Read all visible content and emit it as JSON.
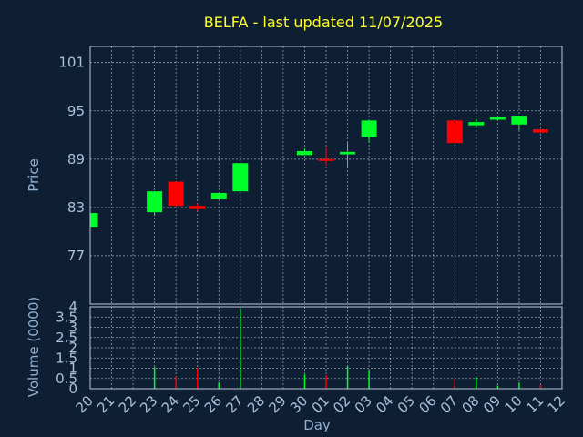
{
  "chart_data": {
    "type": "candlestick",
    "title": "BELFA - last updated 11/07/2025",
    "xlabel": "Day",
    "colors": {
      "background": "#0f1f33",
      "title": "#ffff33",
      "axis_text": "#8fb0d0",
      "tick_text": "#a8c0dc",
      "frame": "#b8c8d8",
      "grid": "#b8c8d8",
      "up": "#00ff2a",
      "down": "#ff0000"
    },
    "x_ticks": [
      "20",
      "21",
      "22",
      "23",
      "24",
      "25",
      "26",
      "27",
      "28",
      "29",
      "30",
      "01",
      "02",
      "03",
      "04",
      "05",
      "06",
      "07",
      "08",
      "09",
      "10",
      "11",
      "12"
    ],
    "price_panel": {
      "ylabel": "Price",
      "ylim": [
        71,
        103
      ],
      "y_ticks": [
        "77",
        "83",
        "89",
        "95",
        "101"
      ],
      "candles": [
        {
          "day": 0,
          "open": 80.6,
          "close": 82.3,
          "high": 82.3,
          "low": 80.6
        },
        {
          "day": 3,
          "open": 82.4,
          "close": 85.0,
          "high": 85.0,
          "low": 82.0
        },
        {
          "day": 4,
          "open": 86.2,
          "close": 83.2,
          "high": 86.2,
          "low": 83.0
        },
        {
          "day": 5,
          "open": 83.2,
          "close": 82.8,
          "high": 83.5,
          "low": 82.6
        },
        {
          "day": 6,
          "open": 84.0,
          "close": 84.8,
          "high": 84.8,
          "low": 84.0
        },
        {
          "day": 7,
          "open": 85.0,
          "close": 88.5,
          "high": 88.5,
          "low": 85.0
        },
        {
          "day": 10,
          "open": 89.5,
          "close": 90.0,
          "high": 90.3,
          "low": 89.5
        },
        {
          "day": 11,
          "open": 89.0,
          "close": 88.8,
          "high": 90.5,
          "low": 88.2
        },
        {
          "day": 12,
          "open": 89.6,
          "close": 89.9,
          "high": 91.0,
          "low": 87.9
        },
        {
          "day": 13,
          "open": 91.8,
          "close": 93.8,
          "high": 93.8,
          "low": 91.0
        },
        {
          "day": 17,
          "open": 93.8,
          "close": 91.0,
          "high": 93.8,
          "low": 91.0
        },
        {
          "day": 18,
          "open": 93.2,
          "close": 93.6,
          "high": 94.0,
          "low": 93.0
        },
        {
          "day": 19,
          "open": 93.9,
          "close": 94.3,
          "high": 94.3,
          "low": 93.8
        },
        {
          "day": 20,
          "open": 93.3,
          "close": 94.4,
          "high": 94.4,
          "low": 92.6
        },
        {
          "day": 21,
          "open": 92.7,
          "close": 92.3,
          "high": 92.8,
          "low": 92.2
        }
      ]
    },
    "volume_panel": {
      "ylabel": "Volume (0000)",
      "ylim": [
        0,
        4
      ],
      "y_ticks": [
        "0",
        "0.5",
        "1",
        "1.5",
        "2",
        "2.5",
        "3",
        "3.5",
        "4"
      ],
      "bars": [
        {
          "day": 3,
          "value": 1.05,
          "direction": "up"
        },
        {
          "day": 4,
          "value": 0.6,
          "direction": "down"
        },
        {
          "day": 5,
          "value": 1.0,
          "direction": "down"
        },
        {
          "day": 6,
          "value": 0.3,
          "direction": "up"
        },
        {
          "day": 7,
          "value": 3.9,
          "direction": "up"
        },
        {
          "day": 10,
          "value": 0.7,
          "direction": "up"
        },
        {
          "day": 11,
          "value": 0.65,
          "direction": "down"
        },
        {
          "day": 12,
          "value": 1.1,
          "direction": "up"
        },
        {
          "day": 13,
          "value": 0.9,
          "direction": "up"
        },
        {
          "day": 17,
          "value": 0.5,
          "direction": "down"
        },
        {
          "day": 18,
          "value": 0.55,
          "direction": "up"
        },
        {
          "day": 19,
          "value": 0.15,
          "direction": "up"
        },
        {
          "day": 20,
          "value": 0.3,
          "direction": "up"
        },
        {
          "day": 21,
          "value": 0.2,
          "direction": "down"
        }
      ]
    }
  }
}
